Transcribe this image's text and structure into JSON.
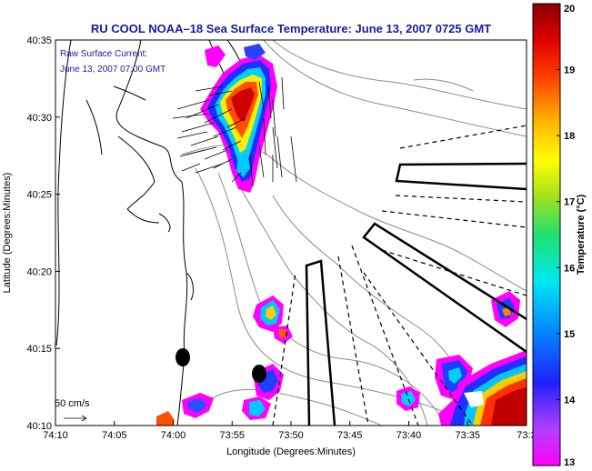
{
  "title": "RU COOL   NOAA–18  Sea Surface Temperature:  June 13, 2007 0725 GMT",
  "current_note": {
    "line1": "Raw Surface Current:",
    "line2": "June 13, 2007 07:00 GMT"
  },
  "scale_label": "50 cm/s",
  "axes": {
    "xlabel": "Longitude (Degrees:Minutes)",
    "ylabel": "Latitude (Degrees:Minutes)",
    "xticks": [
      "74:10",
      "74:05",
      "74:00",
      "73:55",
      "73:50",
      "73:45",
      "73:40",
      "73:35",
      "73:3"
    ],
    "yticks": [
      "40:35",
      "40:30",
      "40:25",
      "40:20",
      "40:15",
      "40:10"
    ]
  },
  "colorbar": {
    "label": "Temperature (°C)",
    "ticks": [
      "20",
      "19",
      "18",
      "17",
      "16",
      "15",
      "14",
      "13"
    ],
    "min": 13,
    "max": 20,
    "scale": "rainbow (magenta low, dark red high)"
  },
  "colors": {
    "title": "#1a1aa0",
    "coast": "#000000",
    "bathymetry": "#8a8a8a",
    "low": "#ff00ff",
    "high": "#9a0000"
  }
}
